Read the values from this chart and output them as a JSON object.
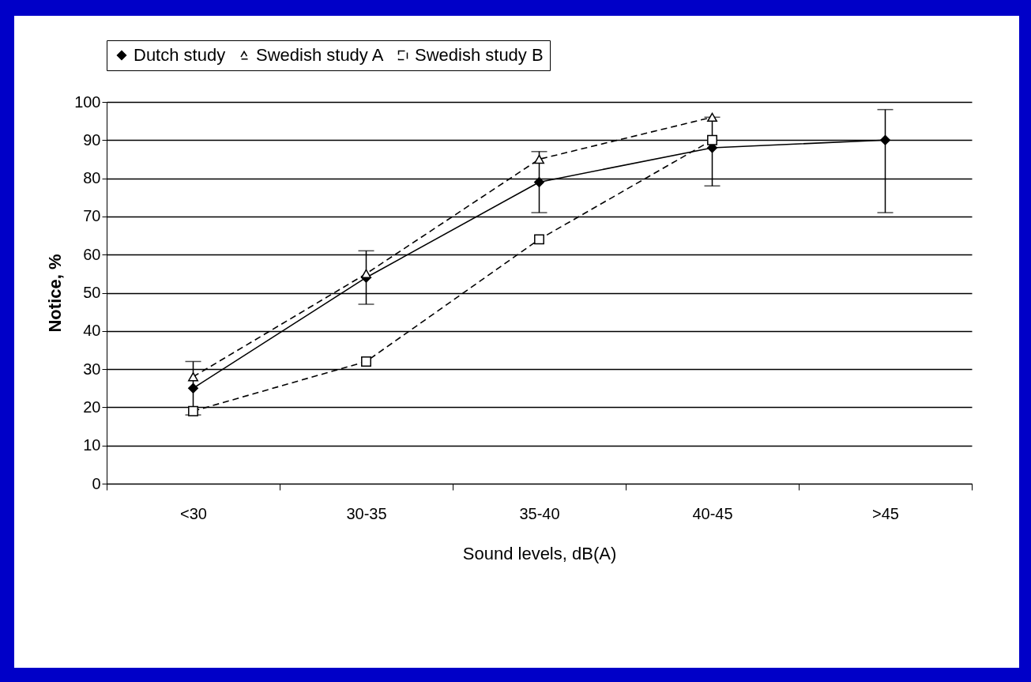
{
  "chart_data": {
    "type": "line",
    "xlabel": "Sound levels, dB(A)",
    "ylabel": "Notice, %",
    "categories": [
      "<30",
      "30-35",
      "35-40",
      "40-45",
      ">45"
    ],
    "series": [
      {
        "name": "Dutch study",
        "color": "#000000",
        "marker": "diamond",
        "line_style": "solid",
        "values": [
          25,
          54,
          79,
          88,
          90
        ],
        "errors": [
          [
            18,
            32
          ],
          [
            47,
            61
          ],
          [
            71,
            87
          ],
          [
            78,
            96
          ],
          [
            71,
            98
          ]
        ]
      },
      {
        "name": "Swedish study A",
        "color": "#000000",
        "marker": "triangle",
        "line_style": "dashed",
        "values": [
          28,
          55,
          85,
          96,
          null
        ]
      },
      {
        "name": "Swedish study B",
        "color": "#000000",
        "marker": "square",
        "line_style": "dashed",
        "values": [
          19,
          32,
          64,
          90,
          null
        ]
      }
    ],
    "ylim": [
      0,
      100
    ],
    "yticks": [
      0,
      10,
      20,
      30,
      40,
      50,
      60,
      70,
      80,
      90,
      100
    ],
    "grid": "y",
    "legend": "top"
  }
}
